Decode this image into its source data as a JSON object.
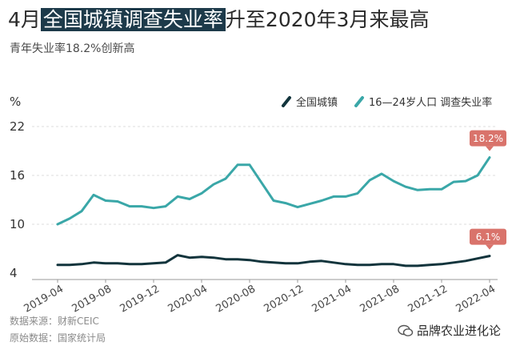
{
  "header": {
    "title_pre": "4月",
    "title_highlight": "全国城镇调查失业率",
    "title_post": "升至2020年3月来最高",
    "subtitle": "青年失业率18.2%创新高"
  },
  "footer": {
    "source": "数据来源：财新CEIC",
    "origin": "原始数据：国家统计局",
    "watermark": "品牌农业进化论"
  },
  "colors": {
    "national": "#12343c",
    "youth": "#3aa7a8",
    "callout": "#d9736b",
    "title_highlight_bg": "#1d3a4a",
    "grid": "#dddddd"
  },
  "chart_data": {
    "type": "line",
    "ylabel": "%",
    "ylim": [
      4,
      22
    ],
    "yticks": [
      4,
      10,
      16,
      22
    ],
    "x": [
      "2019-04",
      "2019-05",
      "2019-06",
      "2019-07",
      "2019-08",
      "2019-09",
      "2019-10",
      "2019-11",
      "2019-12",
      "2020-01",
      "2020-02",
      "2020-03",
      "2020-04",
      "2020-05",
      "2020-06",
      "2020-07",
      "2020-08",
      "2020-09",
      "2020-10",
      "2020-11",
      "2020-12",
      "2021-01",
      "2021-02",
      "2021-03",
      "2021-04",
      "2021-05",
      "2021-06",
      "2021-07",
      "2021-08",
      "2021-09",
      "2021-10",
      "2021-11",
      "2021-12",
      "2022-01",
      "2022-02",
      "2022-03",
      "2022-04"
    ],
    "xticks": [
      "2019-04",
      "2019-08",
      "2019-12",
      "2020-04",
      "2020-08",
      "2020-12",
      "2021-04",
      "2021-08",
      "2021-12",
      "2022-04"
    ],
    "legend_position": "top-right",
    "series": [
      {
        "name": "全国城镇",
        "color_key": "national",
        "values": [
          5.0,
          5.0,
          5.1,
          5.3,
          5.2,
          5.2,
          5.1,
          5.1,
          5.2,
          5.3,
          6.2,
          5.9,
          6.0,
          5.9,
          5.7,
          5.7,
          5.6,
          5.4,
          5.3,
          5.2,
          5.2,
          5.4,
          5.5,
          5.3,
          5.1,
          5.0,
          5.0,
          5.1,
          5.1,
          4.9,
          4.9,
          5.0,
          5.1,
          5.3,
          5.5,
          5.8,
          6.1
        ]
      },
      {
        "name": "16—24岁人口 调查失业率",
        "color_key": "youth",
        "values": [
          10.0,
          10.7,
          11.6,
          13.6,
          12.9,
          12.8,
          12.2,
          12.2,
          12.0,
          12.2,
          13.4,
          13.1,
          13.8,
          14.9,
          15.6,
          17.3,
          17.3,
          15.1,
          12.9,
          12.6,
          12.1,
          12.5,
          12.9,
          13.4,
          13.4,
          13.8,
          15.4,
          16.2,
          15.3,
          14.6,
          14.2,
          14.3,
          14.3,
          15.2,
          15.3,
          16.0,
          18.2
        ]
      }
    ],
    "annotations": [
      {
        "series_index": 1,
        "x": "2022-04",
        "label": "18.2%"
      },
      {
        "series_index": 0,
        "x": "2022-04",
        "label": "6.1%"
      }
    ]
  }
}
